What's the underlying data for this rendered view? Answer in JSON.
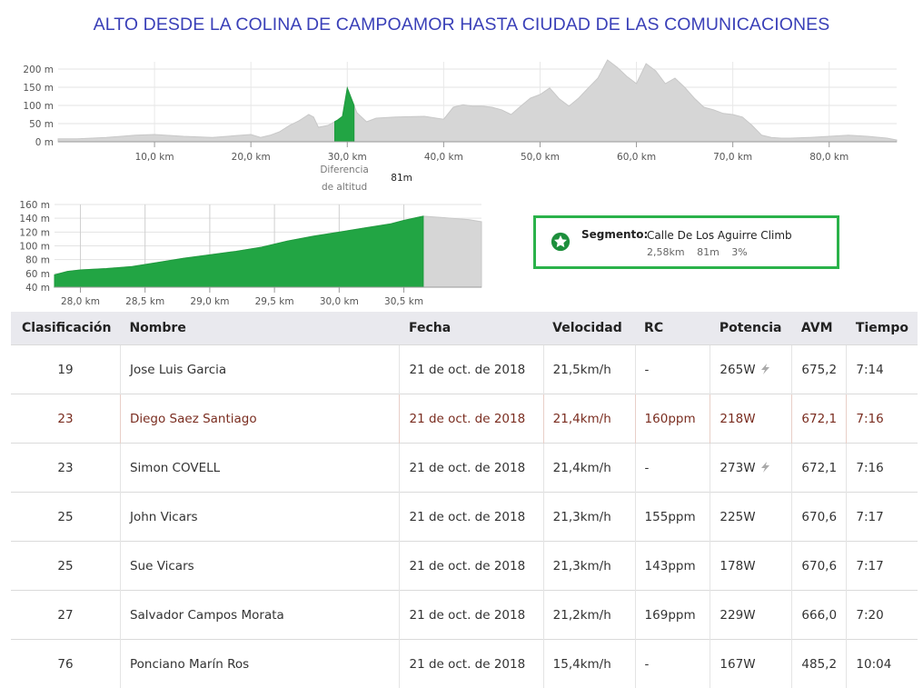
{
  "title": "ALTO DESDE LA COLINA DE CAMPOAMOR HASTA CIUDAD DE LAS COMUNICACIONES",
  "chart_data": [
    {
      "type": "area",
      "name": "elevation_profile_full",
      "x_unit": "km",
      "y_unit": "m",
      "xlim": [
        0,
        87
      ],
      "ylim": [
        0,
        220
      ],
      "x_ticks": [
        "10,0 km",
        "20,0 km",
        "30,0 km",
        "40,0 km",
        "50,0 km",
        "60,0 km",
        "70,0 km",
        "80,0 km"
      ],
      "y_ticks": [
        "200 m",
        "150 m",
        "100 m",
        "50 m",
        "0 m"
      ],
      "x": [
        0,
        2,
        5,
        8,
        10,
        13,
        16,
        19,
        20,
        21,
        22,
        23,
        24,
        25,
        26,
        26.5,
        27,
        28,
        29,
        29.5,
        30,
        31,
        32,
        33,
        35,
        38,
        40,
        41,
        42,
        43,
        44,
        45,
        46,
        47,
        48,
        49,
        50,
        51,
        52,
        53,
        54,
        55,
        56,
        57,
        58,
        59,
        60,
        61,
        62,
        63,
        64,
        65,
        66,
        67,
        68,
        69,
        70,
        71,
        72,
        73,
        74,
        75,
        76,
        78,
        80,
        82,
        84,
        86,
        87
      ],
      "y": [
        8,
        8,
        12,
        18,
        20,
        15,
        12,
        18,
        20,
        12,
        18,
        28,
        45,
        58,
        75,
        68,
        40,
        45,
        60,
        70,
        148,
        80,
        55,
        65,
        68,
        70,
        62,
        95,
        102,
        98,
        98,
        95,
        88,
        75,
        98,
        120,
        130,
        148,
        118,
        98,
        120,
        148,
        175,
        225,
        205,
        180,
        160,
        215,
        195,
        160,
        175,
        150,
        120,
        95,
        88,
        78,
        75,
        68,
        45,
        18,
        12,
        10,
        10,
        12,
        15,
        18,
        15,
        10,
        5
      ],
      "highlight_range": [
        28.7,
        30.7
      ],
      "annotation_label": "Diferencia\nde altitud",
      "annotation_value": "81m"
    },
    {
      "type": "area",
      "name": "segment_elevation_profile",
      "x_unit": "km",
      "y_unit": "m",
      "xlim": [
        27.8,
        31.1
      ],
      "ylim": [
        40,
        160
      ],
      "x_ticks": [
        "28,0 km",
        "28,5 km",
        "29,0 km",
        "29,5 km",
        "30,0 km",
        "30,5 km"
      ],
      "y_ticks": [
        "160 m",
        "140 m",
        "120 m",
        "100 m",
        "80 m",
        "60 m",
        "40 m"
      ],
      "x": [
        27.8,
        27.9,
        28.0,
        28.2,
        28.4,
        28.6,
        28.8,
        29.0,
        29.2,
        29.4,
        29.6,
        29.8,
        30.0,
        30.2,
        30.4,
        30.5,
        30.6,
        30.65,
        30.8,
        31.0,
        31.1
      ],
      "y": [
        58,
        63,
        65,
        67,
        70,
        76,
        82,
        87,
        92,
        98,
        107,
        114,
        120,
        126,
        132,
        137,
        141,
        143,
        141,
        138,
        135
      ],
      "highlight_range": [
        27.8,
        30.65
      ]
    }
  ],
  "segment": {
    "label": "Segmento:",
    "name": "Calle De Los Aguirre Climb",
    "distance": "2,58km",
    "elevation": "81m",
    "grade": "3%",
    "star_color": "#1d8f3c"
  },
  "table": {
    "headers": [
      "Clasificación",
      "Nombre",
      "Fecha",
      "Velocidad",
      "RC",
      "Potencia",
      "AVM",
      "Tiempo"
    ],
    "rows": [
      {
        "rank": "19",
        "name": "Jose Luis Garcia",
        "date": "21 de oct. de 2018",
        "speed": "21,5km/h",
        "hr": "-",
        "power": "265W",
        "power_icon": true,
        "avm": "675,2",
        "time": "7:14",
        "highlight": false
      },
      {
        "rank": "23",
        "name": "Diego Saez Santiago",
        "date": "21 de oct. de 2018",
        "speed": "21,4km/h",
        "hr": "160ppm",
        "power": "218W",
        "power_icon": false,
        "avm": "672,1",
        "time": "7:16",
        "highlight": true
      },
      {
        "rank": "23",
        "name": "Simon COVELL",
        "date": "21 de oct. de 2018",
        "speed": "21,4km/h",
        "hr": "-",
        "power": "273W",
        "power_icon": true,
        "avm": "672,1",
        "time": "7:16",
        "highlight": false
      },
      {
        "rank": "25",
        "name": "John Vicars",
        "date": "21 de oct. de 2018",
        "speed": "21,3km/h",
        "hr": "155ppm",
        "power": "225W",
        "power_icon": false,
        "avm": "670,6",
        "time": "7:17",
        "highlight": false
      },
      {
        "rank": "25",
        "name": "Sue Vicars",
        "date": "21 de oct. de 2018",
        "speed": "21,3km/h",
        "hr": "143ppm",
        "power": "178W",
        "power_icon": false,
        "avm": "670,6",
        "time": "7:17",
        "highlight": false
      },
      {
        "rank": "27",
        "name": "Salvador Campos Morata",
        "date": "21 de oct. de 2018",
        "speed": "21,2km/h",
        "hr": "169ppm",
        "power": "229W",
        "power_icon": false,
        "avm": "666,0",
        "time": "7:20",
        "highlight": false
      },
      {
        "rank": "76",
        "name": "Ponciano Marín Ros",
        "date": "21 de oct. de 2018",
        "speed": "15,4km/h",
        "hr": "-",
        "power": "167W",
        "power_icon": false,
        "avm": "485,2",
        "time": "10:04",
        "highlight": false
      }
    ]
  },
  "colors": {
    "green": "#2ab24a",
    "gray_fill": "#d6d6d6",
    "title": "#3a40b8",
    "date_link": "#1a87c4"
  }
}
